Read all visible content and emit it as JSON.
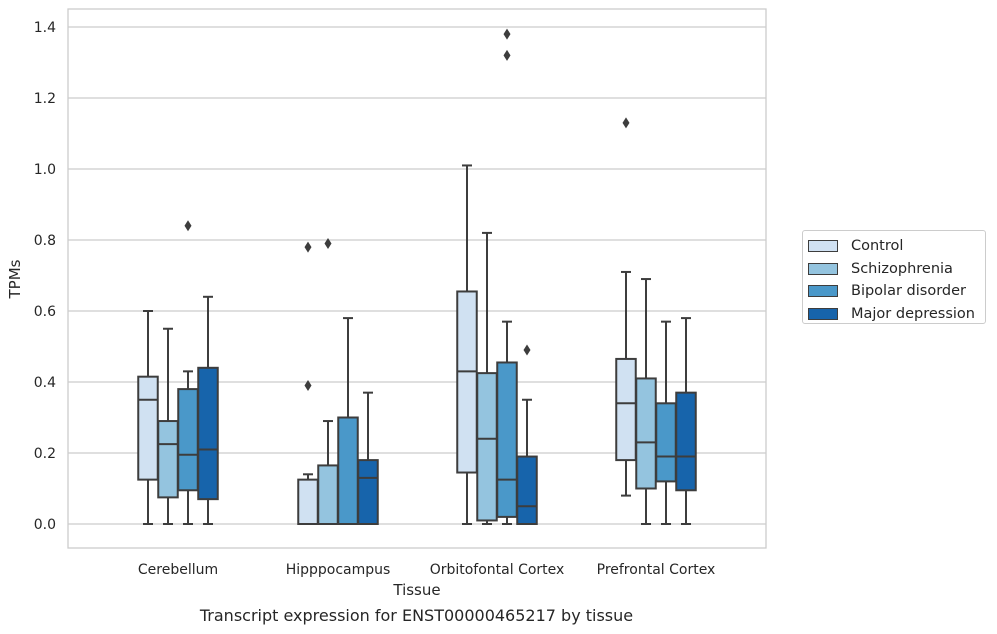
{
  "chart_data": {
    "type": "boxplot",
    "xlabel": "Tissue",
    "ylabel": "TPMs",
    "ylim": [
      -0.065,
      1.45
    ],
    "yticks": [
      0.0,
      0.2,
      0.4,
      0.6,
      0.8,
      1.0,
      1.2,
      1.4
    ],
    "ytick_labels": [
      "0.0",
      "0.2",
      "0.4",
      "0.6",
      "0.8",
      "1.0",
      "1.2",
      "1.4"
    ],
    "grid": "horizontal",
    "legend_position": "right",
    "categories": [
      "Cerebellum",
      "Hipppocampus",
      "Orbitofontal Cortex",
      "Prefrontal Cortex"
    ],
    "series": [
      {
        "name": "Control",
        "color": "#d0e1f2",
        "boxes": [
          {
            "whislo": 0.0,
            "q1": 0.125,
            "med": 0.35,
            "q3": 0.415,
            "whishi": 0.6,
            "fliers": []
          },
          {
            "whislo": 0.0,
            "q1": 0.0,
            "med": 0.0,
            "q3": 0.125,
            "whishi": 0.14,
            "fliers": [
              0.39,
              0.78
            ]
          },
          {
            "whislo": 0.0,
            "q1": 0.145,
            "med": 0.43,
            "q3": 0.655,
            "whishi": 1.01,
            "fliers": []
          },
          {
            "whislo": 0.08,
            "q1": 0.18,
            "med": 0.34,
            "q3": 0.465,
            "whishi": 0.71,
            "fliers": [
              1.13
            ]
          }
        ]
      },
      {
        "name": "Schizophrenia",
        "color": "#94c4df",
        "boxes": [
          {
            "whislo": 0.0,
            "q1": 0.075,
            "med": 0.225,
            "q3": 0.29,
            "whishi": 0.55,
            "fliers": []
          },
          {
            "whislo": 0.0,
            "q1": 0.0,
            "med": 0.0,
            "q3": 0.165,
            "whishi": 0.29,
            "fliers": [
              0.79
            ]
          },
          {
            "whislo": 0.0,
            "q1": 0.01,
            "med": 0.24,
            "q3": 0.425,
            "whishi": 0.82,
            "fliers": []
          },
          {
            "whislo": 0.0,
            "q1": 0.1,
            "med": 0.23,
            "q3": 0.41,
            "whishi": 0.69,
            "fliers": []
          }
        ]
      },
      {
        "name": "Bipolar disorder",
        "color": "#4a98c9",
        "boxes": [
          {
            "whislo": 0.0,
            "q1": 0.095,
            "med": 0.195,
            "q3": 0.38,
            "whishi": 0.43,
            "fliers": [
              0.84
            ]
          },
          {
            "whislo": 0.0,
            "q1": 0.0,
            "med": 0.0,
            "q3": 0.3,
            "whishi": 0.58,
            "fliers": []
          },
          {
            "whislo": 0.0,
            "q1": 0.02,
            "med": 0.125,
            "q3": 0.455,
            "whishi": 0.57,
            "fliers": [
              1.32,
              1.38
            ]
          },
          {
            "whislo": 0.0,
            "q1": 0.12,
            "med": 0.19,
            "q3": 0.34,
            "whishi": 0.57,
            "fliers": []
          }
        ]
      },
      {
        "name": "Major depression",
        "color": "#1764ab",
        "boxes": [
          {
            "whislo": 0.0,
            "q1": 0.07,
            "med": 0.21,
            "q3": 0.44,
            "whishi": 0.64,
            "fliers": []
          },
          {
            "whislo": 0.0,
            "q1": 0.0,
            "med": 0.13,
            "q3": 0.18,
            "whishi": 0.37,
            "fliers": []
          },
          {
            "whislo": 0.0,
            "q1": 0.0,
            "med": 0.05,
            "q3": 0.19,
            "whishi": 0.35,
            "fliers": [
              0.49
            ]
          },
          {
            "whislo": 0.0,
            "q1": 0.095,
            "med": 0.19,
            "q3": 0.37,
            "whishi": 0.58,
            "fliers": []
          }
        ]
      }
    ]
  },
  "caption": "Transcript expression for ENST00000465217 by tissue"
}
